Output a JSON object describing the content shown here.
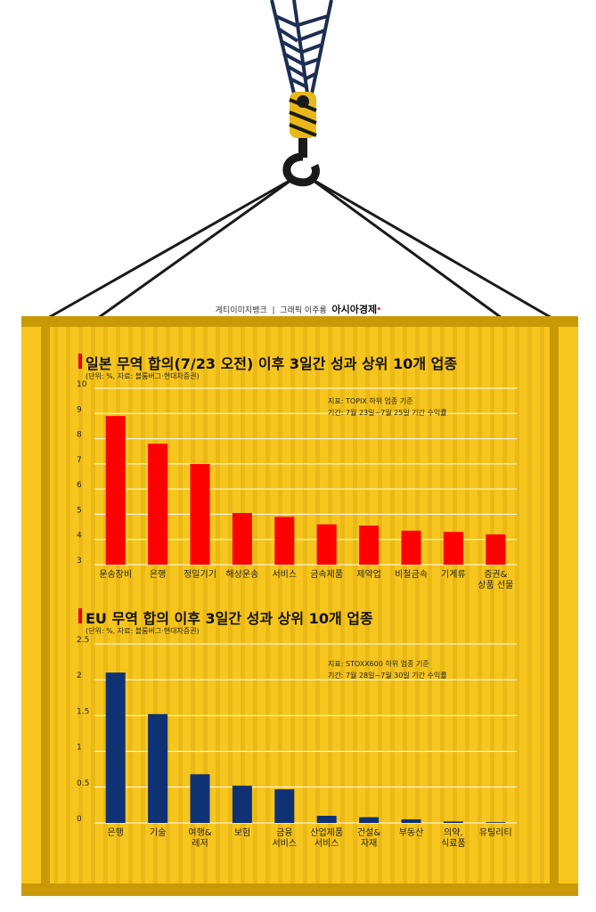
{
  "credit": {
    "source": "게티이미지뱅크",
    "separator": "|",
    "graphic": "그래픽 이주룡",
    "brand": "아시아경제"
  },
  "colors": {
    "container": "#F7C61E",
    "container_rib": "#E2AE10",
    "frame": "#C99A06",
    "crane": "#1E2E52",
    "hook": "#1a1a1a",
    "pulley": "#E8B81A",
    "japan_bar": "#FF0000",
    "eu_bar": "#0E3273",
    "grid": "#ffffff"
  },
  "chart_data": [
    {
      "type": "bar",
      "title": "일본 무역 합의(7/23 오전) 이후 3일간 성과 상위 10개 업종",
      "subtitle": "(단위: %, 자료: 블룸버그·현대차증권)",
      "note_lines": [
        "지표: TOPIX 하위 업종 기준",
        "기간: 7월 23일~7월 25일 기간 수익률"
      ],
      "categories": [
        "운송장비",
        "은행",
        "정밀기기",
        "해상운송",
        "서비스",
        "금속제품",
        "제약업",
        "비철금속",
        "기계류",
        "증권&\n상품 선물"
      ],
      "values": [
        8.9,
        7.8,
        7.0,
        5.05,
        4.9,
        4.6,
        4.55,
        4.35,
        4.3,
        4.2
      ],
      "ylim": [
        3,
        10
      ],
      "yticks": [
        "3",
        "4",
        "5",
        "6",
        "7",
        "8",
        "9",
        "10"
      ],
      "grid": true
    },
    {
      "type": "bar",
      "title": "EU 무역 합의 이후 3일간 성과 상위 10개 업종",
      "subtitle": "(단위: %, 자료: 블룸버그·현대차증권)",
      "note_lines": [
        "지표: STOXX600 하위 업종 기준",
        "기간: 7월 28일~7월 30일 기간 수익률"
      ],
      "categories": [
        "은행",
        "기술",
        "여행&\n레저",
        "보험",
        "금융\n서비스",
        "산업제품\n서비스",
        "건설&\n자재",
        "부동산",
        "의약,\n식료품",
        "유틸리티"
      ],
      "values": [
        2.1,
        1.52,
        0.68,
        0.52,
        0.47,
        0.1,
        0.08,
        0.05,
        0.02,
        0.01
      ],
      "ylim": [
        0,
        2.5
      ],
      "yticks": [
        "0",
        "0.5",
        "1",
        "1.5",
        "2",
        "2.5"
      ],
      "grid": true
    }
  ]
}
